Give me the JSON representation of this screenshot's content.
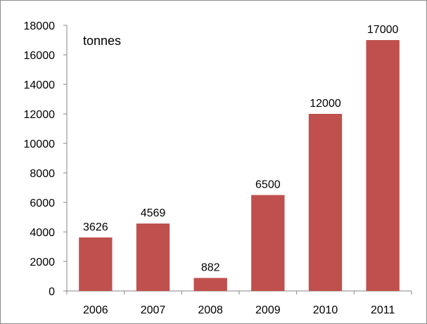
{
  "chart_data": {
    "type": "bar",
    "annotation": "tonnes",
    "categories": [
      "2006",
      "2007",
      "2008",
      "2009",
      "2010",
      "2011"
    ],
    "values": [
      3626,
      4569,
      882,
      6500,
      12000,
      17000
    ],
    "data_labels": [
      "3626",
      "4569",
      "882",
      "6500",
      "12000",
      "17000"
    ],
    "ylim": [
      0,
      18000
    ],
    "yticks": [
      0,
      2000,
      4000,
      6000,
      8000,
      10000,
      12000,
      14000,
      16000,
      18000
    ],
    "ytick_labels": [
      "0",
      "2000",
      "4000",
      "6000",
      "8000",
      "10000",
      "12000",
      "14000",
      "16000",
      "18000"
    ],
    "grid": false,
    "legend": "none",
    "colors": {
      "bar": "#c0504d",
      "axis": "#868686"
    }
  }
}
